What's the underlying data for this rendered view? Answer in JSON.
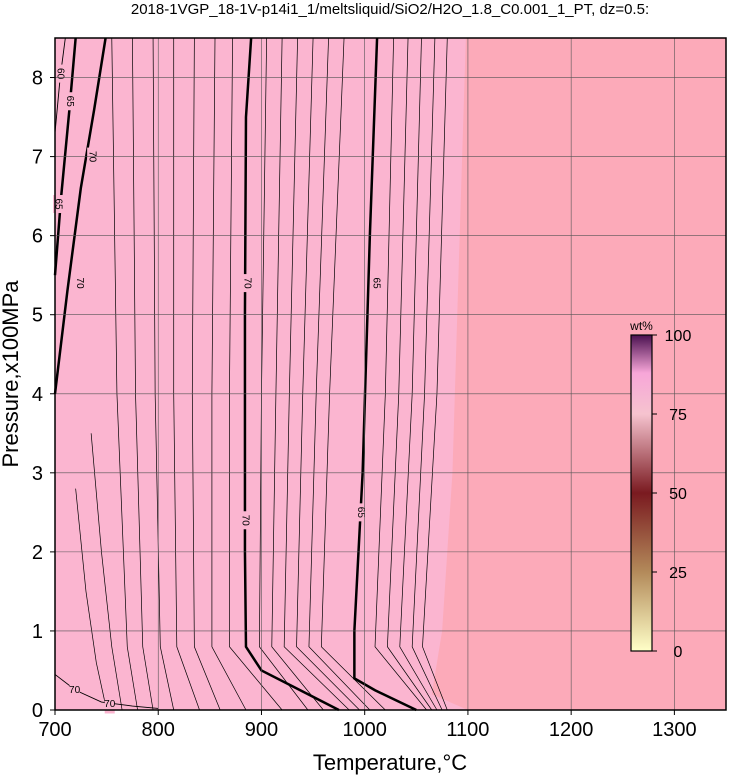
{
  "chart_data": {
    "type": "contour",
    "title": "2018-1VGP_18-1V-p14i1_1/meltsliquid/SiO2/H2O_1.8_C0.001_1_PT, dz=0.5:",
    "x_label": "Temperature,°C",
    "y_label": "Pressure,x100MPa",
    "xlim": [
      700,
      1350
    ],
    "ylim": [
      0,
      8.5
    ],
    "xticks": [
      700,
      800,
      900,
      1000,
      1100,
      1200,
      1300
    ],
    "yticks": [
      0,
      1,
      2,
      3,
      4,
      5,
      6,
      7,
      8
    ],
    "grid": true,
    "background_color": "#fcaab9",
    "region": {
      "color": "#fbb5d0",
      "x": [
        1098,
        1092,
        1085,
        1075,
        1065,
        1100
      ],
      "y": [
        8.5,
        6,
        3,
        1,
        0.2,
        0
      ]
    },
    "contours": [
      {
        "level": 70,
        "bold": true,
        "x": [
          890,
          885,
          884,
          884,
          885,
          900,
          930,
          975
        ],
        "y": [
          8.5,
          7.5,
          5,
          2,
          0.8,
          0.5,
          0.3,
          0
        ]
      },
      {
        "level": 65,
        "bold": true,
        "x": [
          1012,
          1005,
          998,
          990,
          990,
          1010,
          1050
        ],
        "y": [
          8.5,
          6,
          3,
          1,
          0.4,
          0.25,
          0
        ]
      },
      {
        "level": 70,
        "bold": true,
        "x": [
          700,
          712,
          725,
          738,
          749
        ],
        "y": [
          4,
          5.3,
          6.6,
          7.6,
          8.5
        ]
      },
      {
        "level": 65,
        "bold": true,
        "x": [
          700,
          706,
          714,
          720
        ],
        "y": [
          5.5,
          6.5,
          7.6,
          8.5
        ]
      },
      {
        "level": 60,
        "bold": false,
        "x": [
          700,
          705,
          710
        ],
        "y": [
          7.3,
          8,
          8.5
        ]
      },
      {
        "level": 70,
        "bold": false,
        "x": [
          700,
          720,
          745,
          775,
          800
        ],
        "y": [
          0.45,
          0.25,
          0.1,
          0.05,
          0.02
        ]
      }
    ],
    "minor_contours": [
      {
        "x": [
          755,
          760,
          770,
          780
        ],
        "y": [
          8.5,
          4,
          0.8,
          0
        ]
      },
      {
        "x": [
          775,
          778,
          785,
          795
        ],
        "y": [
          8.5,
          4,
          0.8,
          0
        ]
      },
      {
        "x": [
          795,
          797,
          802,
          815
        ],
        "y": [
          8.5,
          4,
          0.8,
          0
        ]
      },
      {
        "x": [
          815,
          815,
          818,
          840
        ],
        "y": [
          8.5,
          4,
          0.8,
          0
        ]
      },
      {
        "x": [
          835,
          833,
          835,
          860
        ],
        "y": [
          8.5,
          4,
          0.8,
          0
        ]
      },
      {
        "x": [
          855,
          852,
          852,
          885
        ],
        "y": [
          8.5,
          4,
          0.8,
          0
        ]
      },
      {
        "x": [
          872,
          869,
          869,
          920
        ],
        "y": [
          8.5,
          4,
          0.8,
          0
        ]
      },
      {
        "x": [
          905,
          900,
          898,
          945
        ],
        "y": [
          8.5,
          4,
          0.8,
          0
        ]
      },
      {
        "x": [
          920,
          914,
          910,
          960
        ],
        "y": [
          8.5,
          4,
          0.8,
          0
        ]
      },
      {
        "x": [
          935,
          927,
          922,
          985
        ],
        "y": [
          8.5,
          4,
          0.8,
          0
        ]
      },
      {
        "x": [
          950,
          940,
          934,
          995
        ],
        "y": [
          8.5,
          4,
          0.8,
          0
        ]
      },
      {
        "x": [
          965,
          953,
          946,
          1005
        ],
        "y": [
          8.5,
          4,
          0.8,
          0
        ]
      },
      {
        "x": [
          980,
          966,
          958,
          1020
        ],
        "y": [
          8.5,
          4,
          0.8,
          0
        ]
      },
      {
        "x": [
          1028,
          1020,
          1010,
          1060
        ],
        "y": [
          8.5,
          4,
          0.8,
          0
        ]
      },
      {
        "x": [
          1042,
          1033,
          1022,
          1065
        ],
        "y": [
          8.5,
          4,
          0.8,
          0
        ]
      },
      {
        "x": [
          1055,
          1046,
          1034,
          1070
        ],
        "y": [
          8.5,
          4,
          0.8,
          0
        ]
      },
      {
        "x": [
          1068,
          1058,
          1046,
          1075
        ],
        "y": [
          8.5,
          4,
          0.8,
          0
        ]
      },
      {
        "x": [
          1080,
          1070,
          1056,
          1080
        ],
        "y": [
          8.5,
          4,
          0.8,
          0
        ]
      },
      {
        "x": [
          735,
          745,
          755,
          765
        ],
        "y": [
          3.5,
          2,
          0.8,
          0
        ]
      },
      {
        "x": [
          720,
          730,
          740,
          750
        ],
        "y": [
          2.8,
          1.5,
          0.6,
          0
        ]
      }
    ],
    "colorbar": {
      "label": "wt%",
      "lim": [
        0,
        100
      ],
      "ticks": [
        0,
        25,
        50,
        75,
        100
      ],
      "stops": [
        {
          "value": 0,
          "color": "#ffffc8"
        },
        {
          "value": 25,
          "color": "#b38a5a"
        },
        {
          "value": 50,
          "color": "#7a1a20"
        },
        {
          "value": 75,
          "color": "#f6c3cf"
        },
        {
          "value": 88,
          "color": "#f7a6d8"
        },
        {
          "value": 100,
          "color": "#4a1050"
        }
      ]
    }
  }
}
